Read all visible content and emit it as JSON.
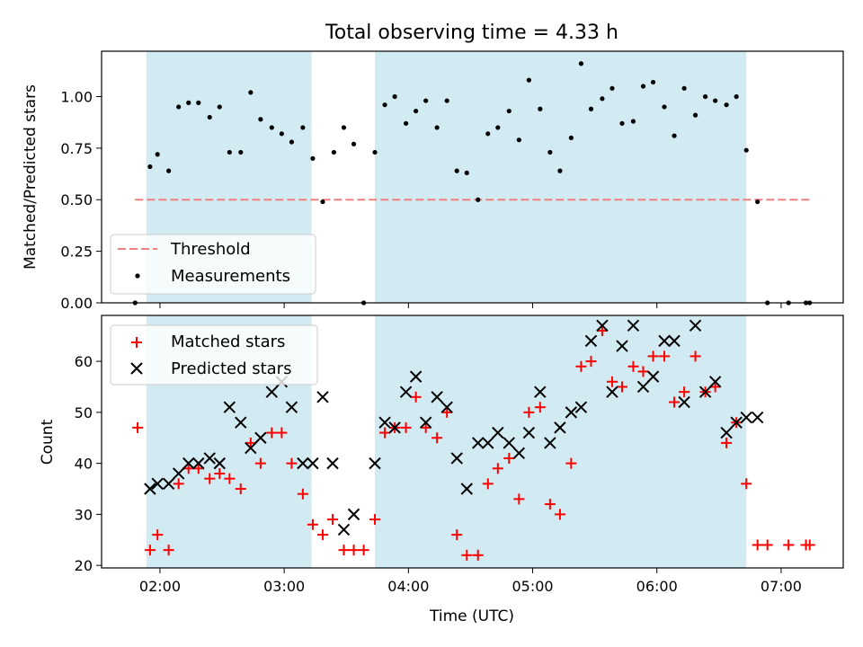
{
  "title": "Total observing time = 4.33 h",
  "chart_data": [
    {
      "type": "scatter",
      "panel": "top",
      "ylabel": "Matched/Predicted stars",
      "ylim": [
        0,
        1.22
      ],
      "yticks": [
        "0.00",
        "0.25",
        "0.50",
        "0.75",
        "1.00"
      ],
      "threshold": {
        "name": "Threshold",
        "y": 0.5,
        "x_start": 1.8,
        "x_end": 7.23,
        "color": "#f08080"
      },
      "series": [
        {
          "name": "Measurements",
          "color": "#000000",
          "points": [
            [
              1.8,
              0.0
            ],
            [
              1.92,
              0.66
            ],
            [
              1.98,
              0.72
            ],
            [
              2.07,
              0.64
            ],
            [
              2.15,
              0.95
            ],
            [
              2.23,
              0.97
            ],
            [
              2.31,
              0.97
            ],
            [
              2.4,
              0.9
            ],
            [
              2.48,
              0.95
            ],
            [
              2.56,
              0.73
            ],
            [
              2.65,
              0.73
            ],
            [
              2.73,
              1.02
            ],
            [
              2.81,
              0.89
            ],
            [
              2.9,
              0.85
            ],
            [
              2.98,
              0.82
            ],
            [
              3.06,
              0.78
            ],
            [
              3.15,
              0.85
            ],
            [
              3.23,
              0.7
            ],
            [
              3.31,
              0.49
            ],
            [
              3.4,
              0.73
            ],
            [
              3.48,
              0.85
            ],
            [
              3.56,
              0.77
            ],
            [
              3.64,
              0.0
            ],
            [
              3.73,
              0.73
            ],
            [
              3.81,
              0.96
            ],
            [
              3.89,
              1.0
            ],
            [
              3.98,
              0.87
            ],
            [
              4.06,
              0.93
            ],
            [
              4.14,
              0.98
            ],
            [
              4.23,
              0.85
            ],
            [
              4.31,
              0.98
            ],
            [
              4.39,
              0.64
            ],
            [
              4.47,
              0.63
            ],
            [
              4.56,
              0.5
            ],
            [
              4.64,
              0.82
            ],
            [
              4.72,
              0.85
            ],
            [
              4.81,
              0.93
            ],
            [
              4.89,
              0.79
            ],
            [
              4.97,
              1.08
            ],
            [
              5.06,
              0.94
            ],
            [
              5.14,
              0.73
            ],
            [
              5.22,
              0.64
            ],
            [
              5.31,
              0.8
            ],
            [
              5.39,
              1.16
            ],
            [
              5.47,
              0.94
            ],
            [
              5.56,
              0.99
            ],
            [
              5.64,
              1.04
            ],
            [
              5.72,
              0.87
            ],
            [
              5.81,
              0.88
            ],
            [
              5.89,
              1.05
            ],
            [
              5.97,
              1.07
            ],
            [
              6.06,
              0.95
            ],
            [
              6.14,
              0.81
            ],
            [
              6.22,
              1.04
            ],
            [
              6.31,
              0.91
            ],
            [
              6.39,
              1.0
            ],
            [
              6.47,
              0.98
            ],
            [
              6.56,
              0.96
            ],
            [
              6.64,
              1.0
            ],
            [
              6.72,
              0.74
            ],
            [
              6.81,
              0.49
            ],
            [
              6.89,
              0.0
            ],
            [
              7.06,
              0.0
            ],
            [
              7.2,
              0.0
            ],
            [
              7.23,
              0.0
            ]
          ]
        }
      ],
      "legend": {
        "location": "lower-left",
        "entries": [
          "Threshold",
          "Measurements"
        ]
      }
    },
    {
      "type": "scatter",
      "panel": "bottom",
      "xlabel": "Time (UTC)",
      "ylabel": "Count",
      "ylim": [
        19.5,
        69
      ],
      "yticks": [
        "20",
        "30",
        "40",
        "50",
        "60"
      ],
      "series": [
        {
          "name": "Matched stars",
          "marker": "+",
          "color": "#ff0000",
          "points": [
            [
              1.82,
              47
            ],
            [
              1.92,
              23
            ],
            [
              1.98,
              26
            ],
            [
              2.07,
              23
            ],
            [
              2.15,
              36
            ],
            [
              2.23,
              39
            ],
            [
              2.31,
              39
            ],
            [
              2.4,
              37
            ],
            [
              2.48,
              38
            ],
            [
              2.56,
              37
            ],
            [
              2.65,
              35
            ],
            [
              2.73,
              44
            ],
            [
              2.81,
              40
            ],
            [
              2.9,
              46
            ],
            [
              2.98,
              46
            ],
            [
              3.06,
              40
            ],
            [
              3.15,
              34
            ],
            [
              3.23,
              28
            ],
            [
              3.31,
              26
            ],
            [
              3.39,
              29
            ],
            [
              3.48,
              23
            ],
            [
              3.56,
              23
            ],
            [
              3.64,
              23
            ],
            [
              3.73,
              29
            ],
            [
              3.81,
              46
            ],
            [
              3.89,
              47
            ],
            [
              3.98,
              47
            ],
            [
              4.06,
              53
            ],
            [
              4.14,
              47
            ],
            [
              4.23,
              45
            ],
            [
              4.31,
              50
            ],
            [
              4.39,
              26
            ],
            [
              4.47,
              22
            ],
            [
              4.56,
              22
            ],
            [
              4.64,
              36
            ],
            [
              4.72,
              39
            ],
            [
              4.81,
              41
            ],
            [
              4.89,
              33
            ],
            [
              4.97,
              50
            ],
            [
              5.06,
              51
            ],
            [
              5.14,
              32
            ],
            [
              5.22,
              30
            ],
            [
              5.31,
              40
            ],
            [
              5.39,
              59
            ],
            [
              5.47,
              60
            ],
            [
              5.56,
              66
            ],
            [
              5.64,
              56
            ],
            [
              5.72,
              55
            ],
            [
              5.81,
              59
            ],
            [
              5.89,
              58
            ],
            [
              5.97,
              61
            ],
            [
              6.06,
              61
            ],
            [
              6.14,
              52
            ],
            [
              6.22,
              54
            ],
            [
              6.31,
              61
            ],
            [
              6.39,
              54
            ],
            [
              6.47,
              55
            ],
            [
              6.56,
              44
            ],
            [
              6.64,
              48
            ],
            [
              6.72,
              36
            ],
            [
              6.81,
              24
            ],
            [
              6.89,
              24
            ],
            [
              7.06,
              24
            ],
            [
              7.2,
              24
            ],
            [
              7.23,
              24
            ]
          ]
        },
        {
          "name": "Predicted stars",
          "marker": "x",
          "color": "#000000",
          "points": [
            [
              1.92,
              35
            ],
            [
              1.98,
              36
            ],
            [
              2.07,
              36
            ],
            [
              2.15,
              38
            ],
            [
              2.23,
              40
            ],
            [
              2.31,
              40
            ],
            [
              2.4,
              41
            ],
            [
              2.48,
              40
            ],
            [
              2.56,
              51
            ],
            [
              2.65,
              48
            ],
            [
              2.73,
              43
            ],
            [
              2.81,
              45
            ],
            [
              2.9,
              54
            ],
            [
              2.98,
              56
            ],
            [
              3.06,
              51
            ],
            [
              3.15,
              40
            ],
            [
              3.23,
              40
            ],
            [
              3.31,
              53
            ],
            [
              3.39,
              40
            ],
            [
              3.48,
              27
            ],
            [
              3.56,
              30
            ],
            [
              3.73,
              40
            ],
            [
              3.81,
              48
            ],
            [
              3.89,
              47
            ],
            [
              3.98,
              54
            ],
            [
              4.06,
              57
            ],
            [
              4.14,
              48
            ],
            [
              4.23,
              53
            ],
            [
              4.31,
              51
            ],
            [
              4.39,
              41
            ],
            [
              4.47,
              35
            ],
            [
              4.56,
              44
            ],
            [
              4.64,
              44
            ],
            [
              4.72,
              46
            ],
            [
              4.81,
              44
            ],
            [
              4.89,
              42
            ],
            [
              4.97,
              46
            ],
            [
              5.06,
              54
            ],
            [
              5.14,
              44
            ],
            [
              5.22,
              47
            ],
            [
              5.31,
              50
            ],
            [
              5.39,
              51
            ],
            [
              5.47,
              64
            ],
            [
              5.56,
              67
            ],
            [
              5.64,
              54
            ],
            [
              5.72,
              63
            ],
            [
              5.81,
              67
            ],
            [
              5.89,
              55
            ],
            [
              5.97,
              57
            ],
            [
              6.06,
              64
            ],
            [
              6.14,
              64
            ],
            [
              6.22,
              52
            ],
            [
              6.31,
              67
            ],
            [
              6.39,
              54
            ],
            [
              6.47,
              56
            ],
            [
              6.56,
              46
            ],
            [
              6.64,
              48
            ],
            [
              6.72,
              49
            ],
            [
              6.81,
              49
            ]
          ]
        }
      ],
      "legend": {
        "location": "upper-left",
        "entries": [
          "Matched stars",
          "Predicted stars"
        ]
      }
    }
  ],
  "shared": {
    "xlim": [
      1.53,
      7.5
    ],
    "xticks": [
      {
        "value": 2,
        "label": "02:00"
      },
      {
        "value": 3,
        "label": "03:00"
      },
      {
        "value": 4,
        "label": "04:00"
      },
      {
        "value": 5,
        "label": "05:00"
      },
      {
        "value": 6,
        "label": "06:00"
      },
      {
        "value": 7,
        "label": "07:00"
      }
    ],
    "shaded_spans": [
      [
        1.89,
        3.22
      ],
      [
        3.73,
        6.72
      ]
    ],
    "shade_color": "#add8e6"
  }
}
